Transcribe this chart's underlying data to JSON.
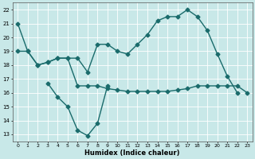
{
  "xlabel": "Humidex (Indice chaleur)",
  "xlim": [
    -0.5,
    23.5
  ],
  "ylim": [
    12.5,
    22.5
  ],
  "yticks": [
    13,
    14,
    15,
    16,
    17,
    18,
    19,
    20,
    21,
    22
  ],
  "xticks": [
    0,
    1,
    2,
    3,
    4,
    5,
    6,
    7,
    8,
    9,
    10,
    11,
    12,
    13,
    14,
    15,
    16,
    17,
    18,
    19,
    20,
    21,
    22,
    23
  ],
  "xtick_labels": [
    "0",
    "1",
    "2",
    "3",
    "4",
    "5",
    "6",
    "7",
    "8",
    "9",
    "10",
    "11",
    "12",
    "13",
    "14",
    "15",
    "16",
    "17",
    "18",
    "19",
    "20",
    "21",
    "22",
    "23"
  ],
  "bg_color": "#c8e8e8",
  "line_color": "#1a6b6b",
  "grid_color": "#ffffff",
  "line1_x": [
    0,
    1,
    2,
    3,
    4,
    5,
    6,
    7,
    8,
    9,
    10,
    11,
    12,
    13,
    14,
    15,
    16,
    17,
    18,
    19,
    20,
    21,
    22
  ],
  "line1_y": [
    21,
    19,
    18,
    18.2,
    18.5,
    18.5,
    18.5,
    17.5,
    19.5,
    19.5,
    19,
    18.8,
    19.5,
    20.2,
    21.2,
    21.5,
    21.5,
    22,
    21.5,
    20.5,
    18.8,
    17.2,
    16
  ],
  "line2_x": [
    0,
    1,
    2,
    3,
    4,
    5,
    6,
    7,
    8,
    9,
    10,
    11,
    12,
    13,
    14,
    15,
    16,
    17,
    18,
    19,
    20,
    21,
    22,
    23
  ],
  "line2_y": [
    19,
    19,
    18,
    18.2,
    18.5,
    18.5,
    16.5,
    16.5,
    16.5,
    16.3,
    16.2,
    16.1,
    16.1,
    16.1,
    16.1,
    16.1,
    16.2,
    16.3,
    16.5,
    16.5,
    16.5,
    16.5,
    16.5,
    16
  ],
  "line3_x": [
    3,
    4,
    5,
    6,
    7,
    8,
    9
  ],
  "line3_y": [
    16.7,
    15.7,
    15,
    13.3,
    12.9,
    13.8,
    16.5
  ],
  "markersize": 2.5,
  "linewidth": 1.0
}
